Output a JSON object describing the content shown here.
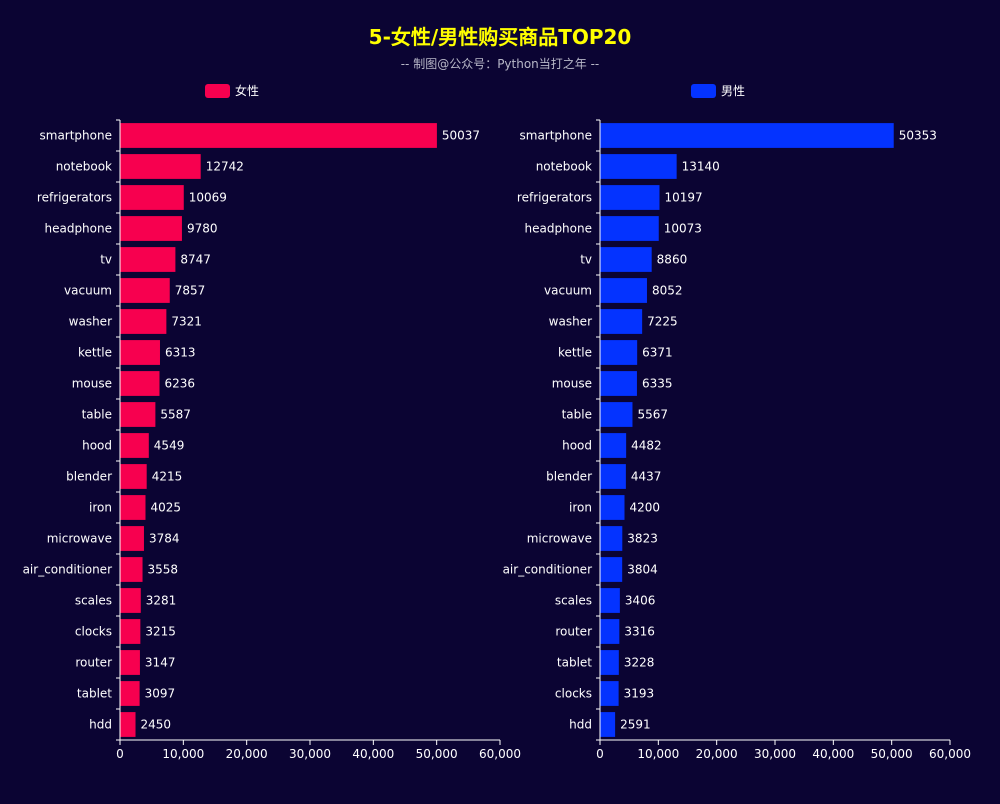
{
  "colors": {
    "background": "#0b0433",
    "title": "#ffff00",
    "text": "#ffffff",
    "subtitle": "#b8b8c8",
    "axis": "#ffffff"
  },
  "title": "5-女性/男性购买商品TOP20",
  "subtitle": "-- 制图@公众号：Python当打之年 --",
  "chart_data": [
    {
      "type": "bar",
      "orientation": "horizontal",
      "legend": "女性",
      "color": "#f7004f",
      "xlim": [
        0,
        60000
      ],
      "xticks": [
        "0",
        "10,000",
        "20,000",
        "30,000",
        "40,000",
        "50,000",
        "60,000"
      ],
      "categories": [
        "smartphone",
        "notebook",
        "refrigerators",
        "headphone",
        "tv",
        "vacuum",
        "washer",
        "kettle",
        "mouse",
        "table",
        "hood",
        "blender",
        "iron",
        "microwave",
        "air_conditioner",
        "scales",
        "clocks",
        "router",
        "tablet",
        "hdd"
      ],
      "values": [
        50037,
        12742,
        10069,
        9780,
        8747,
        7857,
        7321,
        6313,
        6236,
        5587,
        4549,
        4215,
        4025,
        3784,
        3558,
        3281,
        3215,
        3147,
        3097,
        2450
      ]
    },
    {
      "type": "bar",
      "orientation": "horizontal",
      "legend": "男性",
      "color": "#0433ff",
      "xlim": [
        0,
        60000
      ],
      "xticks": [
        "0",
        "10,000",
        "20,000",
        "30,000",
        "40,000",
        "50,000",
        "60,000"
      ],
      "categories": [
        "smartphone",
        "notebook",
        "refrigerators",
        "headphone",
        "tv",
        "vacuum",
        "washer",
        "kettle",
        "mouse",
        "table",
        "hood",
        "blender",
        "iron",
        "microwave",
        "air_conditioner",
        "scales",
        "router",
        "tablet",
        "clocks",
        "hdd"
      ],
      "values": [
        50353,
        13140,
        10197,
        10073,
        8860,
        8052,
        7225,
        6371,
        6335,
        5567,
        4482,
        4437,
        4200,
        3823,
        3804,
        3406,
        3316,
        3228,
        3193,
        2591
      ]
    }
  ]
}
